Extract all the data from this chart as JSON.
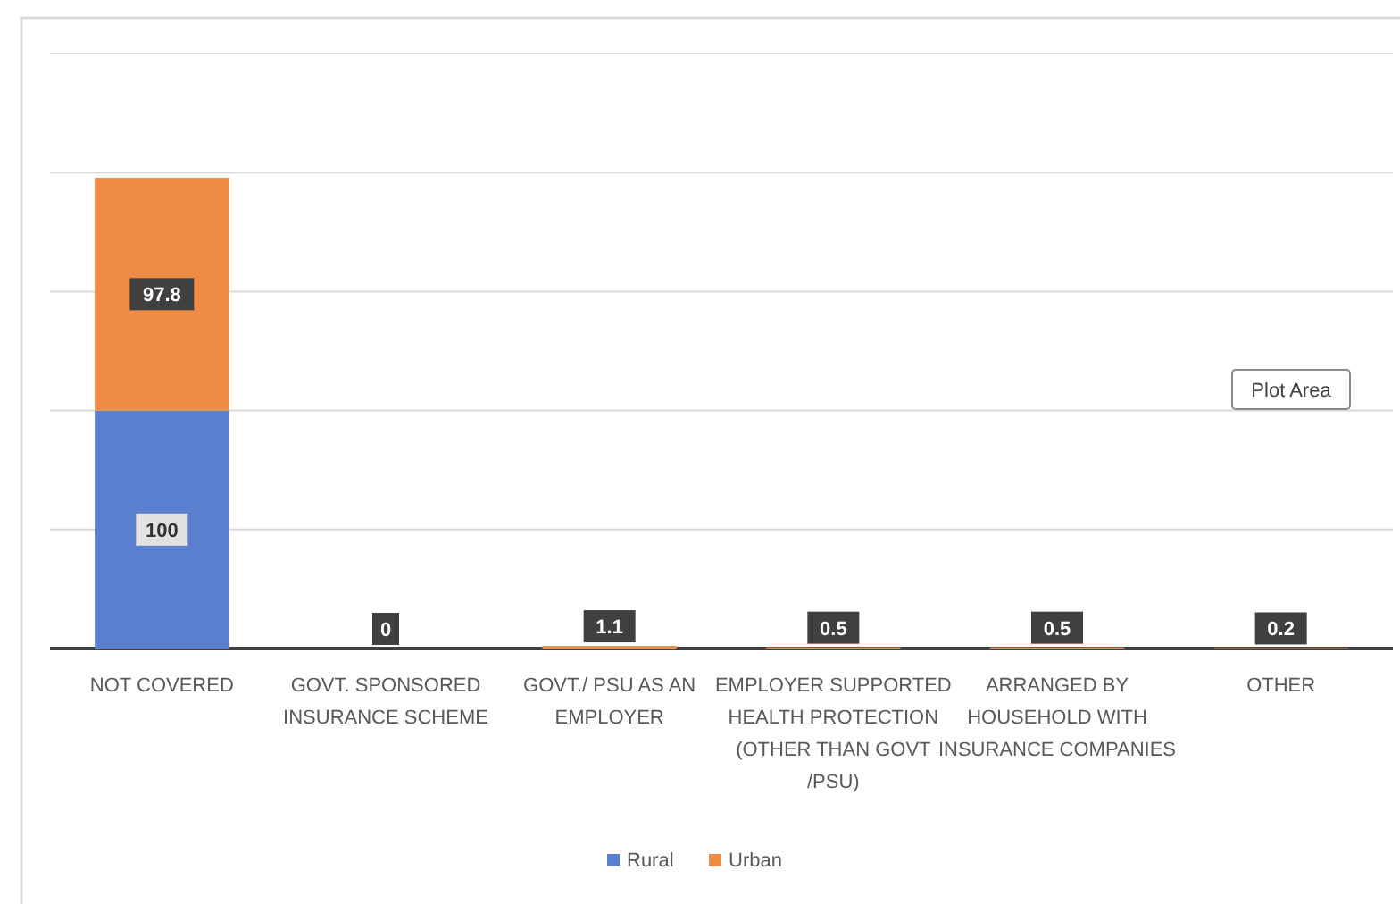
{
  "chart_data": {
    "type": "bar",
    "stacked": true,
    "categories": [
      "NOT COVERED",
      "GOVT. SPONSORED INSURANCE SCHEME",
      "GOVT./ PSU AS AN EMPLOYER",
      "EMPLOYER SUPPORTED HEALTH PROTECTION (OTHER THAN GOVT /PSU)",
      "ARRANGED BY HOUSEHOLD WITH INSURANCE COMPANIES",
      "OTHER"
    ],
    "series": [
      {
        "name": "Rural",
        "color": "#5b7fcf",
        "values": [
          100,
          null,
          null,
          null,
          null,
          null
        ],
        "value_labels": [
          "100",
          null,
          null,
          null,
          null,
          null
        ]
      },
      {
        "name": "Urban",
        "color": "#ee8c46",
        "values": [
          97.8,
          0,
          1.1,
          0.5,
          0.5,
          0.2
        ],
        "value_labels": [
          "97.8",
          "0",
          "1.1",
          "0.5",
          "0.5",
          "0.2"
        ]
      }
    ],
    "ylim": [
      0,
      250
    ],
    "yticks": [
      {
        "value": 0,
        "label": null
      },
      {
        "value": 50,
        "label": null
      },
      {
        "value": 100,
        "label": null
      },
      {
        "value": 150,
        "label": null
      },
      {
        "value": 200,
        "label": null
      },
      {
        "value": 250,
        "label": null
      }
    ],
    "tick_labels": "x",
    "grid": "y",
    "legend": "bottom",
    "annotations": [
      "Plot Area"
    ]
  }
}
